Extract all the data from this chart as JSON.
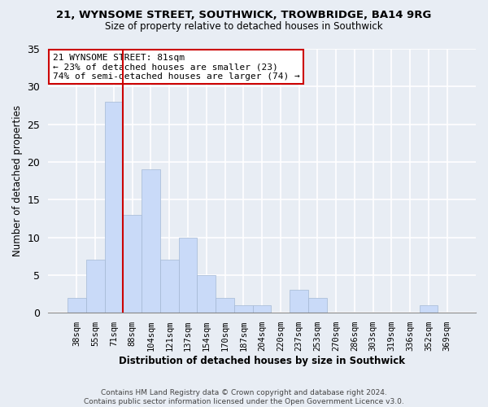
{
  "title1": "21, WYNSOME STREET, SOUTHWICK, TROWBRIDGE, BA14 9RG",
  "title2": "Size of property relative to detached houses in Southwick",
  "xlabel": "Distribution of detached houses by size in Southwick",
  "ylabel": "Number of detached properties",
  "categories": [
    "38sqm",
    "55sqm",
    "71sqm",
    "88sqm",
    "104sqm",
    "121sqm",
    "137sqm",
    "154sqm",
    "170sqm",
    "187sqm",
    "204sqm",
    "220sqm",
    "237sqm",
    "253sqm",
    "270sqm",
    "286sqm",
    "303sqm",
    "319sqm",
    "336sqm",
    "352sqm",
    "369sqm"
  ],
  "values": [
    2,
    7,
    28,
    13,
    19,
    7,
    10,
    5,
    2,
    1,
    1,
    0,
    3,
    2,
    0,
    0,
    0,
    0,
    0,
    1,
    0
  ],
  "bar_color": "#c9daf8",
  "bar_edge_color": "#a4b8d4",
  "bar_edge_width": 0.5,
  "vline_x_index": 2,
  "vline_color": "#cc0000",
  "annotation_line1": "21 WYNSOME STREET: 81sqm",
  "annotation_line2": "← 23% of detached houses are smaller (23)",
  "annotation_line3": "74% of semi-detached houses are larger (74) →",
  "annotation_box_color": "#ffffff",
  "annotation_box_edge": "#cc0000",
  "ylim": [
    0,
    35
  ],
  "yticks": [
    0,
    5,
    10,
    15,
    20,
    25,
    30,
    35
  ],
  "background_color": "#e8edf4",
  "grid_color": "#ffffff",
  "footer1": "Contains HM Land Registry data © Crown copyright and database right 2024.",
  "footer2": "Contains public sector information licensed under the Open Government Licence v3.0."
}
